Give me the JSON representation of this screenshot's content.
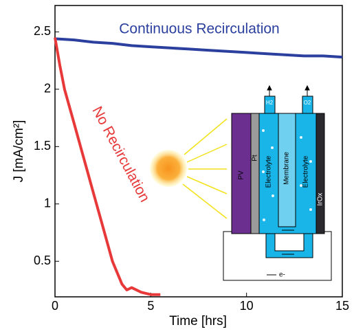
{
  "chart_data": {
    "type": "line",
    "xlabel": "Time [hrs]",
    "ylabel": "J [mA/cm²]",
    "xlim": [
      0,
      15
    ],
    "ylim": [
      0.19,
      2.73
    ],
    "xticks": [
      0,
      5,
      10,
      15
    ],
    "yticks": [
      0.5,
      1,
      1.5,
      2,
      2.5
    ],
    "series": [
      {
        "name": "Continuous Recirculation",
        "color": "#2b3f9e",
        "x": [
          0,
          1,
          2,
          3,
          4,
          5,
          6,
          7,
          8,
          9,
          10,
          11,
          12,
          13,
          14,
          15
        ],
        "values": [
          2.44,
          2.43,
          2.41,
          2.4,
          2.38,
          2.37,
          2.36,
          2.35,
          2.34,
          2.33,
          2.32,
          2.31,
          2.3,
          2.29,
          2.29,
          2.28
        ]
      },
      {
        "name": "No Recirculation",
        "color": "#e8393a",
        "x": [
          0,
          0.25,
          0.5,
          1,
          1.5,
          2,
          2.5,
          3,
          3.5,
          3.75,
          4,
          4.5,
          5,
          5.5
        ],
        "values": [
          2.45,
          2.21,
          2.0,
          1.7,
          1.4,
          1.1,
          0.8,
          0.5,
          0.3,
          0.25,
          0.27,
          0.23,
          0.21,
          0.21
        ]
      }
    ],
    "inset": {
      "pv": "PV",
      "pt": "Pt",
      "electrolyte_left": "Electrolyte",
      "membrane": "Membrane",
      "electrolyte_right": "Electrolyte",
      "irox": "IrOx",
      "h2": "H2",
      "o2": "O2",
      "electron": "e-"
    }
  }
}
